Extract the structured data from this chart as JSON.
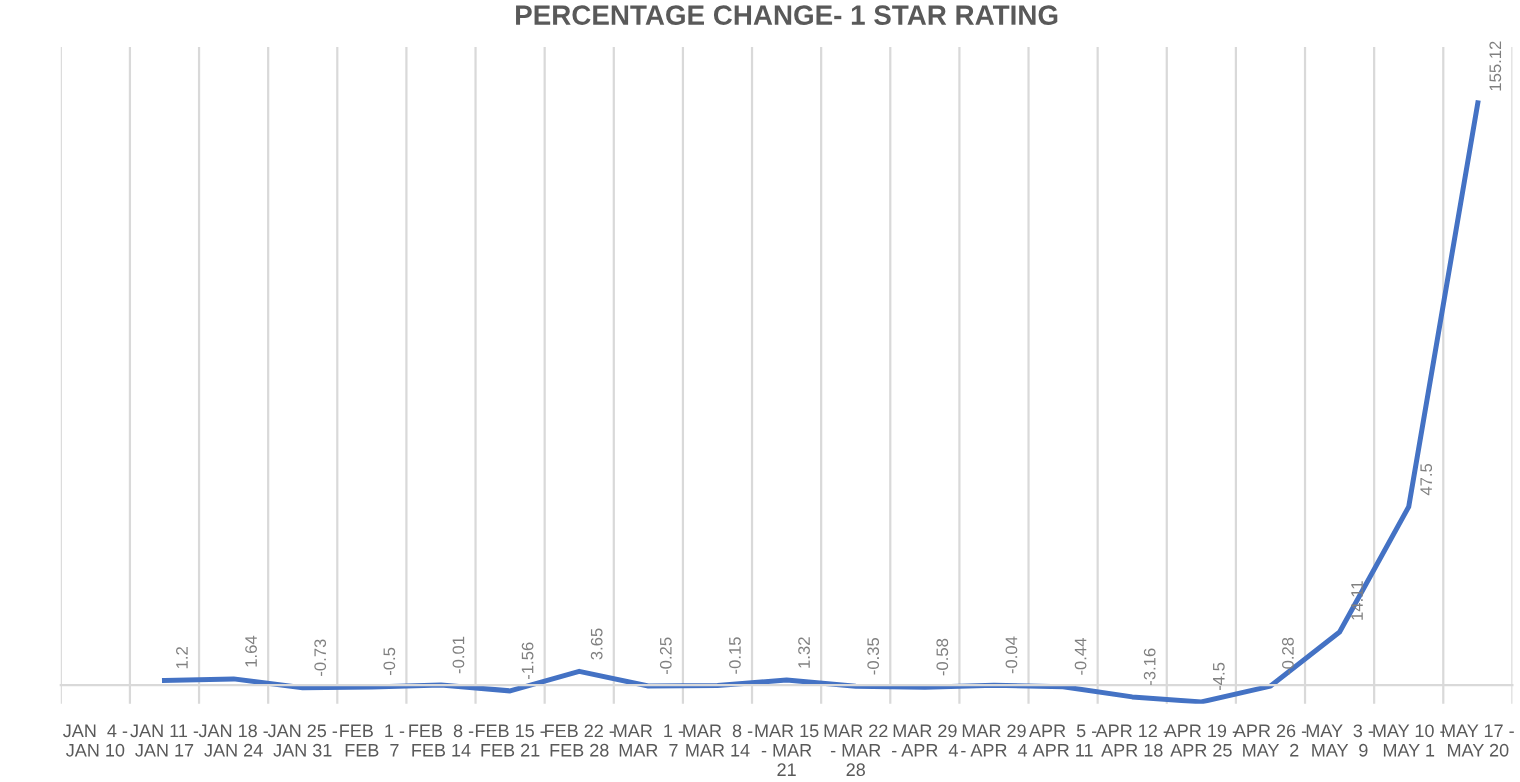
{
  "chart_data": {
    "type": "line",
    "title": "PERCENTAGE CHANGE- 1 STAR RATING",
    "categories": [
      "JAN  4 -\nJAN 10",
      "JAN 11 -\nJAN 17",
      "JAN 18 -\nJAN 24",
      "JAN 25 -\nJAN 31",
      "FEB  1 -\nFEB  7",
      "FEB  8 -\nFEB 14",
      "FEB 15 -\nFEB 21",
      "FEB 22 -\nFEB 28",
      "MAR  1 -\nMAR  7",
      "MAR  8 -\nMAR 14",
      "MAR 15\n- MAR\n21",
      "MAR 22\n- MAR\n28",
      "MAR 29\n- APR  4",
      "MAR 29\n- APR  4",
      "APR  5 -\nAPR 11",
      "APR 12 -\nAPR 18",
      "APR 19 -\nAPR 25",
      "APR 26 -\nMAY  2",
      "MAY  3 -\nMAY  9",
      "MAY 10 -\nMAY 1",
      "MAY 17 -\nMAY 20"
    ],
    "series": [
      {
        "color": "#4472c4",
        "values": [
          null,
          1.2,
          1.64,
          -0.73,
          -0.5,
          -0.01,
          -1.56,
          3.65,
          -0.25,
          -0.15,
          1.32,
          -0.35,
          -0.58,
          -0.04,
          -0.44,
          -3.16,
          -4.5,
          -0.28,
          14.11,
          47.5,
          155.12
        ]
      }
    ],
    "ylim": [
      -5,
      170
    ],
    "tick_labels": "x",
    "grid": "x",
    "data_labels": true,
    "marker": "none",
    "line_style": "solid",
    "legend": false
  }
}
